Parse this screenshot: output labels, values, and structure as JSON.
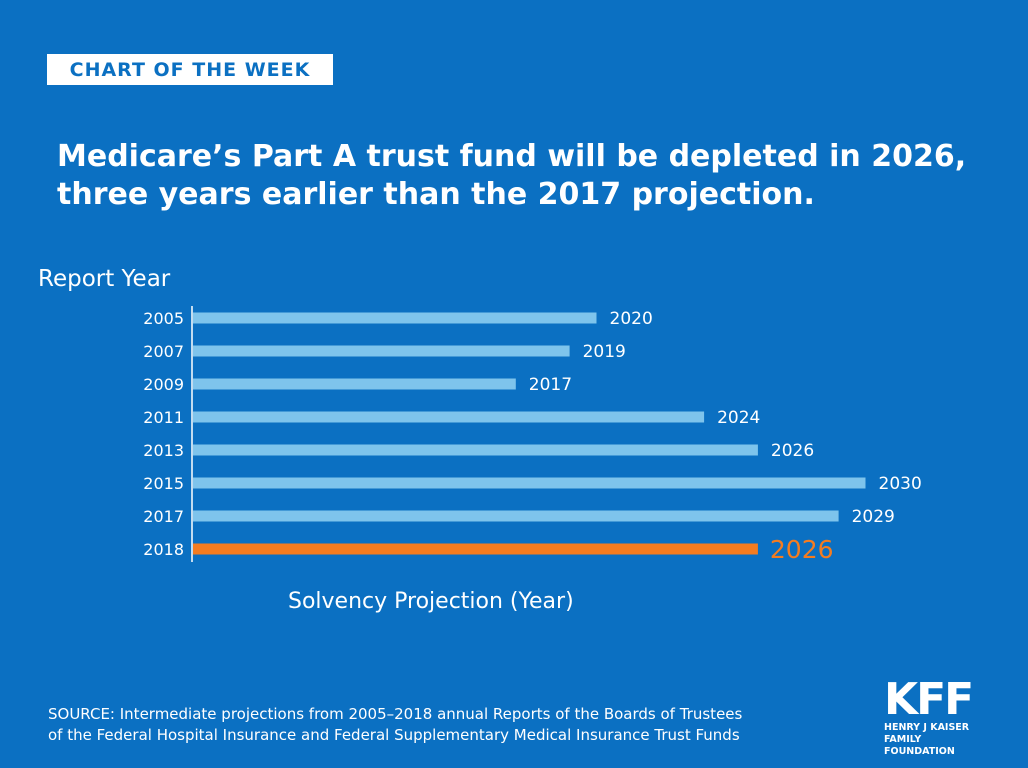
{
  "badge": "CHART OF THE WEEK",
  "title_line1": "Medicare’s Part A trust fund will be depleted in 2026,",
  "title_line2": "three years earlier than the 2017 projection.",
  "source_line1": "SOURCE: Intermediate projections from 2005–2018 annual Reports of the Boards of Trustees",
  "source_line2": "of the Federal Hospital Insurance and Federal Supplementary Medical Insurance Trust Funds",
  "logo": {
    "mark": "KFF",
    "line1": "HENRY J KAISER",
    "line2": "FAMILY FOUNDATION"
  },
  "colors": {
    "background": "#0b70c2",
    "bar": "#7ec4ec",
    "highlight": "#f47c20"
  },
  "chart_data": {
    "type": "bar",
    "orientation": "horizontal",
    "ylabel": "Report Year",
    "xlabel": "Solvency Projection (Year)",
    "categories": [
      "2005",
      "2007",
      "2009",
      "2011",
      "2013",
      "2015",
      "2017",
      "2018"
    ],
    "values": [
      2020,
      2019,
      2017,
      2024,
      2026,
      2030,
      2029,
      2026
    ],
    "highlight": "2018",
    "grid": false
  }
}
